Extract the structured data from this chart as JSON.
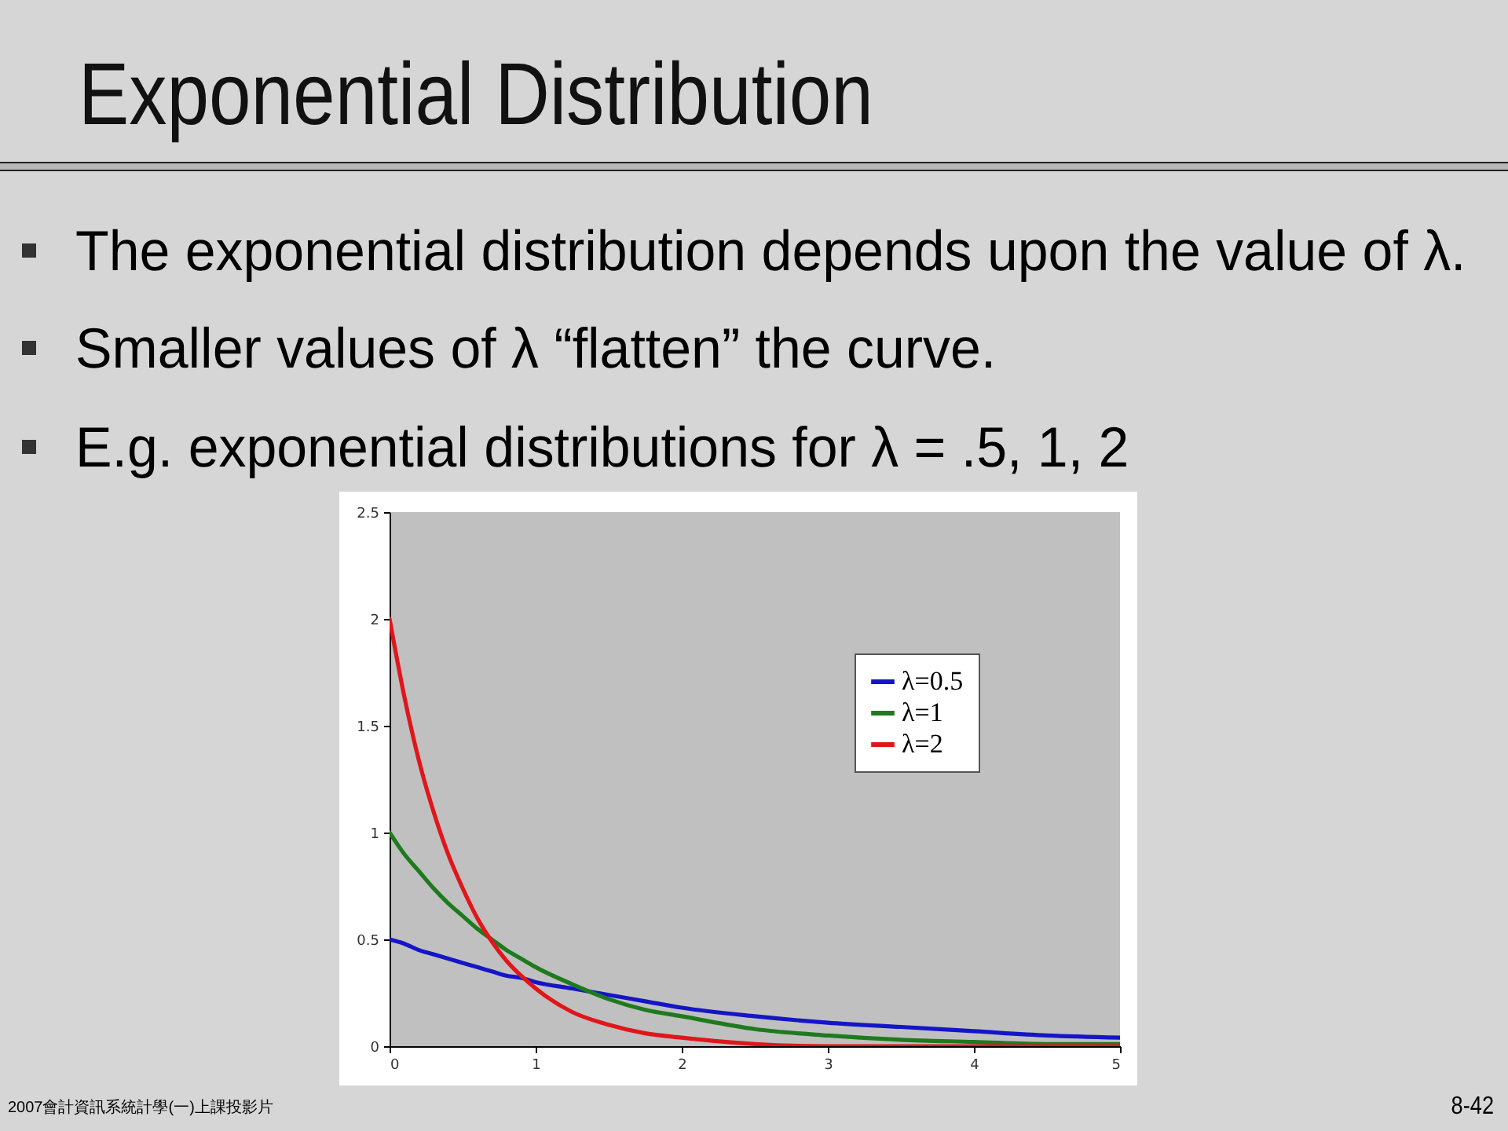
{
  "chart_data": {
    "type": "line",
    "title": "Exponential Distribution",
    "annotations": [
      "The exponential distribution depends upon the value of λ.",
      "Smaller values of λ “flatten” the curve.",
      "E.g. exponential distributions for λ = .5, 1, 2",
      "2007會計資訊系統計學(一)上課投影片",
      "8-42"
    ],
    "x": [
      0,
      0.1,
      0.2,
      0.3,
      0.4,
      0.5,
      0.6,
      0.7,
      0.8,
      0.9,
      1,
      1.25,
      1.5,
      1.75,
      2,
      2.5,
      3,
      3.5,
      4,
      4.5,
      5
    ],
    "series": [
      {
        "name": "λ=0.5",
        "color": "#1515c8",
        "values": [
          0.5,
          0.48,
          0.45,
          0.43,
          0.41,
          0.39,
          0.37,
          0.35,
          0.33,
          0.32,
          0.3,
          0.27,
          0.24,
          0.21,
          0.18,
          0.14,
          0.11,
          0.09,
          0.07,
          0.05,
          0.04
        ]
      },
      {
        "name": "λ=1",
        "color": "#1e7a1e",
        "values": [
          1,
          0.9,
          0.82,
          0.74,
          0.67,
          0.61,
          0.55,
          0.5,
          0.45,
          0.41,
          0.37,
          0.29,
          0.22,
          0.17,
          0.14,
          0.08,
          0.05,
          0.03,
          0.02,
          0.01,
          0.01
        ]
      },
      {
        "name": "λ=2",
        "color": "#e0161b",
        "values": [
          2,
          1.64,
          1.34,
          1.1,
          0.9,
          0.74,
          0.6,
          0.49,
          0.4,
          0.33,
          0.27,
          0.16,
          0.1,
          0.06,
          0.04,
          0.01,
          0,
          0,
          0,
          0,
          0
        ]
      }
    ],
    "xlim": [
      0,
      5
    ],
    "xticks": [
      0,
      1,
      2,
      3,
      4,
      5
    ],
    "ylim": [
      0,
      2.5
    ],
    "yticks": [
      0,
      0.5,
      1,
      1.5,
      2,
      2.5
    ],
    "grid": false,
    "legend": "top right",
    "line_style": "solid"
  }
}
